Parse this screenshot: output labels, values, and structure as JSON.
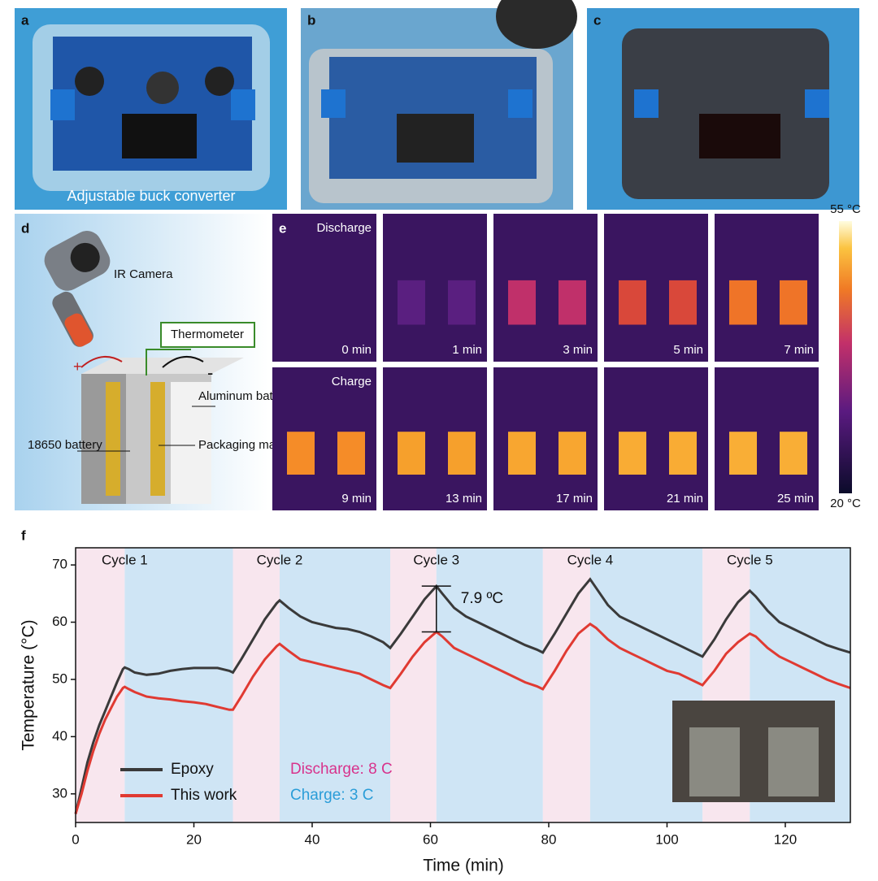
{
  "photos": {
    "a": {
      "label": "a",
      "caption": "Adjustable buck converter"
    },
    "b": {
      "label": "b"
    },
    "c": {
      "label": "c"
    }
  },
  "schematic": {
    "label": "d",
    "camera": "IR Camera",
    "thermometer": "Thermometer",
    "plus": "+",
    "minus": "-",
    "box": "Aluminum battery box",
    "battery": "18650 battery",
    "packaging": "Packaging material"
  },
  "thermal": {
    "label": "e",
    "rows": [
      {
        "name": "Discharge",
        "times": [
          "0 min",
          "1 min",
          "3 min",
          "5 min",
          "7 min"
        ]
      },
      {
        "name": "Charge",
        "times": [
          "9 min",
          "13 min",
          "17 min",
          "21 min",
          "25 min"
        ]
      }
    ],
    "colorbar_max": "55 °C",
    "colorbar_min": "20 °C"
  },
  "chart_data": {
    "type": "line",
    "label": "f",
    "x_label": "Time (min)",
    "y_label": "Temperature (°C)",
    "xlim": [
      0,
      131
    ],
    "ylim": [
      25,
      73
    ],
    "xticks": [
      0,
      20,
      40,
      60,
      80,
      100,
      120
    ],
    "yticks": [
      30,
      40,
      50,
      60,
      70
    ],
    "discharge_spans": [
      [
        0,
        8.3
      ],
      [
        26.6,
        34.5
      ],
      [
        53.2,
        61
      ],
      [
        79,
        87
      ],
      [
        106,
        114
      ]
    ],
    "charge_spans": [
      [
        8.3,
        26.6
      ],
      [
        34.5,
        53.2
      ],
      [
        61,
        79
      ],
      [
        87,
        106
      ],
      [
        114,
        131
      ]
    ],
    "discharge_color": "#f8e6ee",
    "charge_color": "#cfe5f5",
    "cycles": [
      "Cycle 1",
      "Cycle 2",
      "Cycle 3",
      "Cycle 4",
      "Cycle 5"
    ],
    "discharge_text": "Discharge: 8 C",
    "discharge_text_color": "#d8338c",
    "charge_text": "Charge: 3 C",
    "charge_text_color": "#2a9dd8",
    "annotation": {
      "text": "7.9 ºC",
      "x": 61,
      "low": 58.3,
      "high": 66.3
    },
    "x": [
      0,
      1,
      2,
      3,
      4,
      5,
      6,
      7,
      8,
      8.3,
      9,
      10,
      12,
      14,
      16,
      18,
      20,
      22,
      24,
      26,
      26.6,
      28,
      30,
      32,
      34,
      34.5,
      36,
      38,
      40,
      42,
      44,
      46,
      48,
      50,
      52,
      53.2,
      55,
      57,
      59,
      61,
      62,
      64,
      66,
      68,
      70,
      72,
      74,
      76,
      78,
      79,
      81,
      83,
      85,
      87,
      88,
      90,
      92,
      94,
      96,
      98,
      100,
      102,
      104,
      106,
      108,
      110,
      112,
      114,
      115,
      117,
      119,
      121,
      123,
      125,
      127,
      129,
      131
    ],
    "series": [
      {
        "name": "Epoxy",
        "color": "#3a3a3a",
        "values": [
          26.5,
          31,
          35.5,
          39,
          42,
          44.5,
          47,
          49.5,
          51.8,
          52.1,
          51.8,
          51.2,
          50.8,
          51,
          51.5,
          51.8,
          52,
          52,
          52,
          51.5,
          51.2,
          53.5,
          57,
          60.5,
          63.3,
          63.8,
          62.5,
          61,
          60,
          59.5,
          59,
          58.8,
          58.3,
          57.5,
          56.5,
          55.5,
          58,
          61,
          64,
          66.3,
          65,
          62.5,
          61,
          60,
          59,
          58,
          57,
          56,
          55.2,
          54.7,
          58,
          61.5,
          65,
          67.5,
          66,
          63,
          61,
          60,
          59,
          58,
          57,
          56,
          55,
          54,
          57,
          60.5,
          63.5,
          65.5,
          64.5,
          62,
          60,
          59,
          58,
          57,
          56,
          55.3,
          54.7
        ]
      },
      {
        "name": "This work",
        "color": "#e03a32",
        "values": [
          26.5,
          30,
          34,
          37.5,
          40.5,
          43,
          45,
          47,
          48.5,
          48.7,
          48.3,
          47.8,
          47,
          46.7,
          46.5,
          46.2,
          46,
          45.7,
          45.2,
          44.7,
          44.7,
          47,
          50.5,
          53.5,
          55.8,
          56.2,
          55,
          53.5,
          53,
          52.5,
          52,
          51.5,
          51,
          50,
          49,
          48.5,
          51,
          54,
          56.5,
          58.3,
          57.5,
          55.5,
          54.5,
          53.5,
          52.5,
          51.5,
          50.5,
          49.5,
          48.8,
          48.3,
          51.5,
          55,
          58,
          59.7,
          59,
          57,
          55.5,
          54.5,
          53.5,
          52.5,
          51.5,
          51,
          50,
          49,
          51.5,
          54.5,
          56.5,
          58,
          57.5,
          55.5,
          54,
          53,
          52,
          51,
          50,
          49.2,
          48.5
        ]
      }
    ]
  }
}
